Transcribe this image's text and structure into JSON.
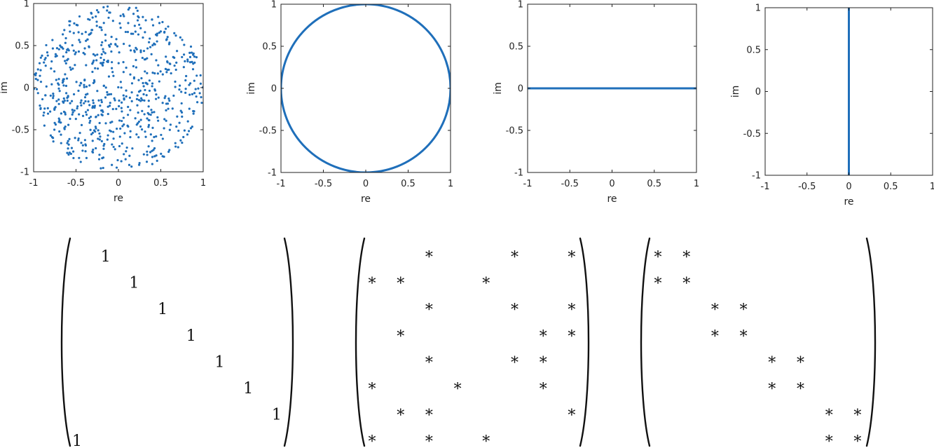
{
  "colors": {
    "series": "#1f6fba",
    "axis": "#222222",
    "entry": "#111111"
  },
  "chart_data": [
    {
      "type": "scatter",
      "title": "",
      "xlabel": "re",
      "ylabel": "im",
      "xlim": [
        -1,
        1
      ],
      "ylim": [
        -1,
        1
      ],
      "xticks": [
        "-1",
        "-0.5",
        "0",
        "0.5",
        "1"
      ],
      "yticks": [
        "-1",
        "-0.5",
        "0",
        "0.5",
        "1"
      ],
      "grid": false,
      "series": [
        {
          "shape": "random points filling the unit disk",
          "count": 700,
          "radius": 1
        }
      ]
    },
    {
      "type": "line",
      "title": "",
      "xlabel": "re",
      "ylabel": "im",
      "xlim": [
        -1,
        1
      ],
      "ylim": [
        -1,
        1
      ],
      "xticks": [
        "-1",
        "-0.5",
        "0",
        "0.5",
        "1"
      ],
      "yticks": [
        "-1",
        "-0.5",
        "0",
        "0.5",
        "1"
      ],
      "grid": false,
      "series": [
        {
          "shape": "unit circle",
          "cx": 0,
          "cy": 0,
          "r": 1
        }
      ]
    },
    {
      "type": "line",
      "title": "",
      "xlabel": "re",
      "ylabel": "im",
      "xlim": [
        -1,
        1
      ],
      "ylim": [
        -1,
        1
      ],
      "xticks": [
        "-1",
        "-0.5",
        "0",
        "0.5",
        "1"
      ],
      "yticks": [
        "-1",
        "-0.5",
        "0",
        "0.5",
        "1"
      ],
      "grid": false,
      "series": [
        {
          "x": [
            -1,
            1
          ],
          "y": [
            0,
            0
          ]
        }
      ]
    },
    {
      "type": "line",
      "title": "",
      "xlabel": "re",
      "ylabel": "im",
      "xlim": [
        -1,
        1
      ],
      "ylim": [
        -1,
        1
      ],
      "xticks": [
        "-1",
        "-0.5",
        "0",
        "0.5",
        "1"
      ],
      "yticks": [
        "-1",
        "-0.5",
        "0",
        "0.5",
        "1"
      ],
      "grid": false,
      "series": [
        {
          "x": [
            0,
            0
          ],
          "y": [
            -1,
            1
          ]
        }
      ]
    }
  ],
  "matrices": [
    {
      "size": 8,
      "entries": [
        [
          0,
          1,
          "1"
        ],
        [
          1,
          2,
          "1"
        ],
        [
          2,
          3,
          "1"
        ],
        [
          3,
          4,
          "1"
        ],
        [
          4,
          5,
          "1"
        ],
        [
          5,
          6,
          "1"
        ],
        [
          6,
          7,
          "1"
        ],
        [
          7,
          0,
          "1"
        ]
      ]
    },
    {
      "size": 8,
      "entries": [
        [
          0,
          2,
          "*"
        ],
        [
          0,
          5,
          "*"
        ],
        [
          0,
          7,
          "*"
        ],
        [
          1,
          0,
          "*"
        ],
        [
          1,
          1,
          "*"
        ],
        [
          1,
          4,
          "*"
        ],
        [
          2,
          2,
          "*"
        ],
        [
          2,
          5,
          "*"
        ],
        [
          2,
          7,
          "*"
        ],
        [
          3,
          1,
          "*"
        ],
        [
          3,
          6,
          "*"
        ],
        [
          3,
          7,
          "*"
        ],
        [
          4,
          2,
          "*"
        ],
        [
          4,
          5,
          "*"
        ],
        [
          4,
          6,
          "*"
        ],
        [
          5,
          0,
          "*"
        ],
        [
          5,
          3,
          "*"
        ],
        [
          5,
          6,
          "*"
        ],
        [
          6,
          1,
          "*"
        ],
        [
          6,
          2,
          "*"
        ],
        [
          6,
          7,
          "*"
        ],
        [
          7,
          0,
          "*"
        ],
        [
          7,
          2,
          "*"
        ],
        [
          7,
          4,
          "*"
        ]
      ]
    },
    {
      "size": 8,
      "entries": [
        [
          0,
          0,
          "*"
        ],
        [
          0,
          1,
          "*"
        ],
        [
          1,
          0,
          "*"
        ],
        [
          1,
          1,
          "*"
        ],
        [
          2,
          2,
          "*"
        ],
        [
          2,
          3,
          "*"
        ],
        [
          3,
          2,
          "*"
        ],
        [
          3,
          3,
          "*"
        ],
        [
          4,
          4,
          "*"
        ],
        [
          4,
          5,
          "*"
        ],
        [
          5,
          4,
          "*"
        ],
        [
          5,
          5,
          "*"
        ],
        [
          6,
          6,
          "*"
        ],
        [
          6,
          7,
          "*"
        ],
        [
          7,
          6,
          "*"
        ],
        [
          7,
          7,
          "*"
        ]
      ]
    }
  ]
}
